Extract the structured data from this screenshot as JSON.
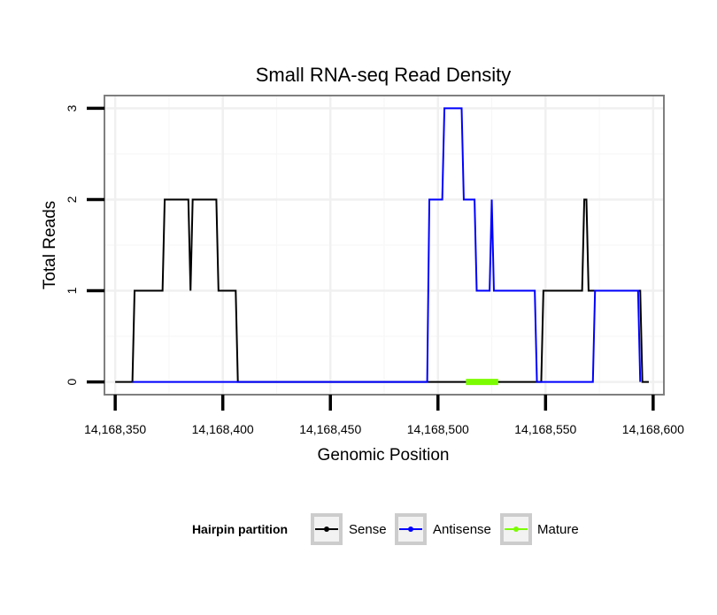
{
  "chart_data": {
    "type": "line",
    "title": "Small RNA-seq Read Density",
    "xlabel": "Genomic Position",
    "ylabel": "Total Reads",
    "xlim": [
      14168345,
      14168605
    ],
    "ylim": [
      -0.14,
      3.14
    ],
    "x_ticks": [
      14168350,
      14168400,
      14168450,
      14168500,
      14168550,
      14168600
    ],
    "x_tick_labels": [
      "14,168,350",
      "14,168,400",
      "14,168,450",
      "14,168,500",
      "14,168,550",
      "14,168,600"
    ],
    "y_ticks": [
      0,
      1,
      2,
      3
    ],
    "y_tick_labels": [
      "0",
      "1",
      "2",
      "3"
    ],
    "grid": true,
    "legend": {
      "title": "Hairpin partition",
      "placement": "bottom",
      "entries": [
        "Sense",
        "Antisense",
        "Mature"
      ]
    },
    "series": [
      {
        "name": "Sense",
        "color": "#000000",
        "x": [
          14168350,
          14168358,
          14168359,
          14168372,
          14168373,
          14168384,
          14168385,
          14168386,
          14168397,
          14168398,
          14168406,
          14168407,
          14168548,
          14168549,
          14168567,
          14168568,
          14168569,
          14168570,
          14168594,
          14168595,
          14168598
        ],
        "values": [
          0,
          0,
          1,
          1,
          2,
          2,
          1,
          2,
          2,
          1,
          1,
          0,
          0,
          1,
          1,
          2,
          2,
          1,
          1,
          0,
          0
        ]
      },
      {
        "name": "Antisense",
        "color": "#0000ff",
        "x": [
          14168358,
          14168495,
          14168496,
          14168502,
          14168503,
          14168511,
          14168512,
          14168517,
          14168518,
          14168524,
          14168525,
          14168526,
          14168545,
          14168546,
          14168572,
          14168573,
          14168593,
          14168594
        ],
        "values": [
          0,
          0,
          2,
          2,
          3,
          3,
          2,
          2,
          1,
          1,
          2,
          1,
          1,
          0,
          0,
          1,
          1,
          0
        ]
      },
      {
        "name": "Mature",
        "color": "#7cfc00",
        "x": [
          14168513,
          14168528
        ],
        "values": [
          0,
          0
        ]
      }
    ]
  }
}
